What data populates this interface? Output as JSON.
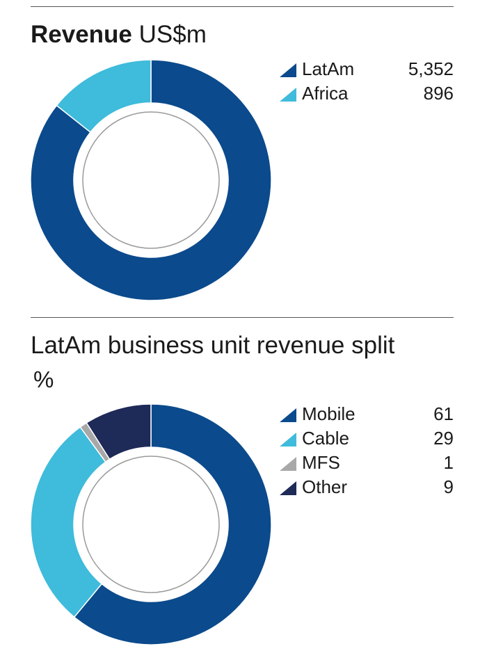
{
  "chart_data": [
    {
      "type": "pie",
      "title": "Revenue",
      "unit": "US$m",
      "categories": [
        "LatAm",
        "Africa"
      ],
      "values": [
        5352,
        896
      ],
      "value_labels": [
        "5,352",
        "896"
      ],
      "colors": [
        "#0b4a8c",
        "#3fbbdb"
      ],
      "legend_position": "right"
    },
    {
      "type": "pie",
      "title": "LatAm business unit revenue split",
      "unit": "%",
      "categories": [
        "Mobile",
        "Cable",
        "MFS",
        "Other"
      ],
      "values": [
        61,
        29,
        1,
        9
      ],
      "value_labels": [
        "61",
        "29",
        "1",
        "9"
      ],
      "colors": [
        "#0b4a8c",
        "#3fbbdb",
        "#a8a8a8",
        "#1e2a57"
      ],
      "legend_position": "right"
    }
  ]
}
